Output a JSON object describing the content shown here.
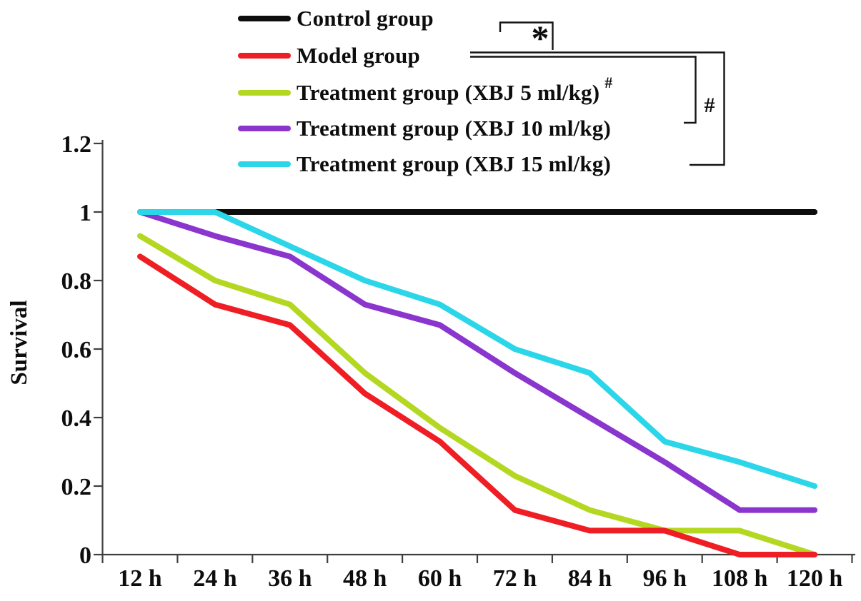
{
  "ylabel": "Survival",
  "legend": {
    "items": [
      {
        "label": "Control group",
        "color": "#0d0d0d"
      },
      {
        "label": "Model group",
        "color": "#ef1d24"
      },
      {
        "label": "Treatment group (XBJ 5 ml/kg)",
        "color": "#b4d821",
        "superscript": "#"
      },
      {
        "label": "Treatment group (XBJ 10 ml/kg)",
        "color": "#8a35cd"
      },
      {
        "label": "Treatment group (XBJ 15 ml/kg)",
        "color": "#2bd6e9"
      }
    ]
  },
  "significance": {
    "star_label": "*",
    "hash_label": "#"
  },
  "chart_data": {
    "type": "line",
    "title": "",
    "xlabel": "",
    "ylabel": "Survival",
    "categories": [
      "12 h",
      "24 h",
      "36 h",
      "48 h",
      "60 h",
      "72 h",
      "84 h",
      "96 h",
      "108 h",
      "120 h"
    ],
    "x_hours": [
      12,
      24,
      36,
      48,
      60,
      72,
      84,
      96,
      108,
      120
    ],
    "ylim": [
      0,
      1.2
    ],
    "yticks": [
      {
        "label": "1.2",
        "value": 1.2
      },
      {
        "label": "1",
        "value": 1.0
      },
      {
        "label": "0.8",
        "value": 0.8
      },
      {
        "label": "0.6",
        "value": 0.6
      },
      {
        "label": "0.4",
        "value": 0.4
      },
      {
        "label": "0.2",
        "value": 0.2
      },
      {
        "label": "0",
        "value": 0.0
      }
    ],
    "grid": false,
    "legend_position": "top-left",
    "series": [
      {
        "name": "Control group",
        "color": "#0d0d0d",
        "values": [
          1.0,
          1.0,
          1.0,
          1.0,
          1.0,
          1.0,
          1.0,
          1.0,
          1.0,
          1.0
        ]
      },
      {
        "name": "Model group",
        "color": "#ef1d24",
        "values": [
          0.87,
          0.73,
          0.67,
          0.47,
          0.33,
          0.13,
          0.07,
          0.07,
          0.0,
          0.0
        ]
      },
      {
        "name": "Treatment group (XBJ 5 ml/kg)",
        "color": "#b4d821",
        "values": [
          0.93,
          0.8,
          0.73,
          0.53,
          0.37,
          0.23,
          0.13,
          0.07,
          0.07,
          0.0
        ]
      },
      {
        "name": "Treatment group (XBJ 10 ml/kg)",
        "color": "#8a35cd",
        "values": [
          1.0,
          0.93,
          0.87,
          0.73,
          0.67,
          0.53,
          0.4,
          0.27,
          0.13,
          0.13
        ]
      },
      {
        "name": "Treatment group (XBJ 15 ml/kg)",
        "color": "#2bd6e9",
        "values": [
          1.0,
          1.0,
          0.9,
          0.8,
          0.73,
          0.6,
          0.53,
          0.33,
          0.27,
          0.2
        ]
      }
    ]
  }
}
